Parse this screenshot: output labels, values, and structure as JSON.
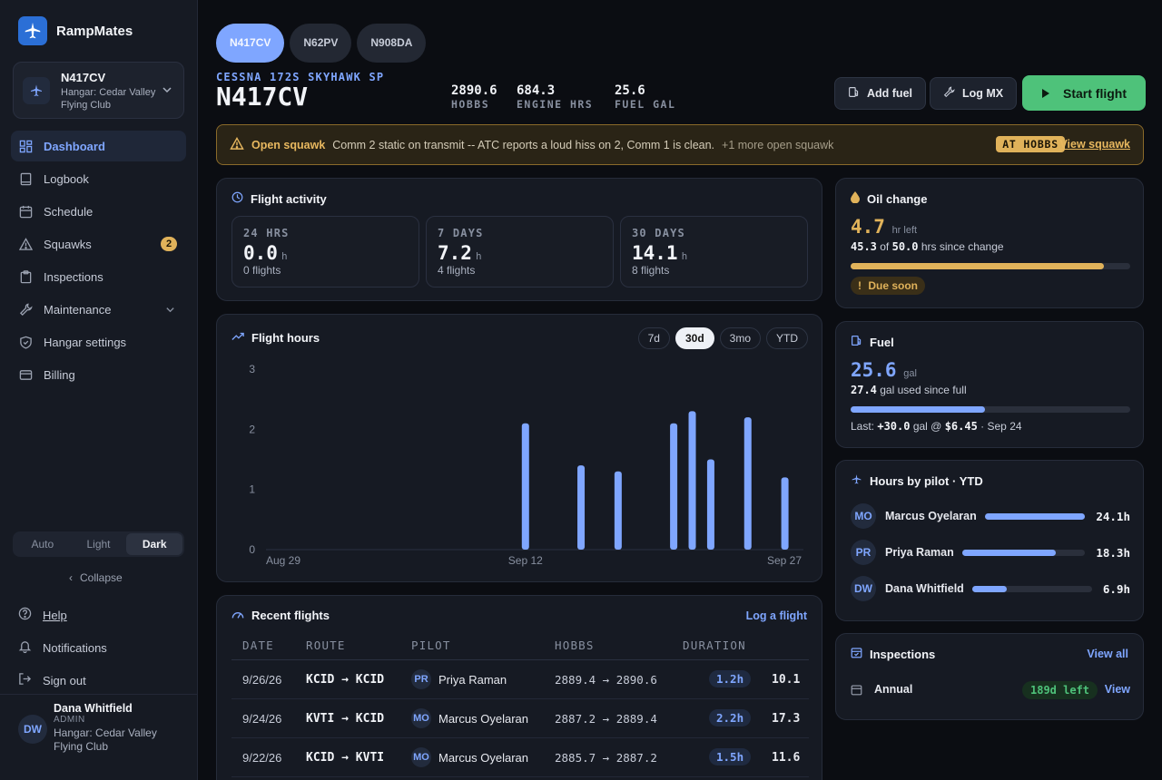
{
  "app": {
    "name": "RampMates"
  },
  "hangar_card": {
    "tail": "N417CV",
    "hangar": "Hangar: Cedar Valley Flying Club"
  },
  "nav": [
    {
      "label": "Dashboard",
      "icon": "dashboard-icon",
      "active": true
    },
    {
      "label": "Logbook",
      "icon": "book-icon"
    },
    {
      "label": "Schedule",
      "icon": "calendar-icon"
    },
    {
      "label": "Squawks",
      "icon": "warning-icon",
      "badge": "2"
    },
    {
      "label": "Inspections",
      "icon": "clipboard-icon"
    },
    {
      "label": "Maintenance",
      "icon": "wrench-icon",
      "expandable": true
    },
    {
      "label": "Hangar settings",
      "icon": "shield-icon"
    },
    {
      "label": "Billing",
      "icon": "card-icon"
    }
  ],
  "theme": {
    "options": [
      "Auto",
      "Light",
      "Dark"
    ],
    "selected": "Dark"
  },
  "collapse_label": "Collapse",
  "footer_links": {
    "help": "Help",
    "notifications": "Notifications",
    "sign_out": "Sign out"
  },
  "user": {
    "initials": "DW",
    "name": "Dana Whitfield",
    "role": "ADMIN",
    "hangar": "Hangar: Cedar Valley Flying Club"
  },
  "aircraft_tabs": [
    "N417CV",
    "N62PV",
    "N908DA"
  ],
  "aircraft": {
    "model": "CESSNA 172S SKYHAWK SP",
    "tail": "N417CV",
    "stats": [
      {
        "value": "2890.6",
        "label": "HOBBS"
      },
      {
        "value": "684.3",
        "label": "ENGINE HRS"
      },
      {
        "value": "25.6",
        "label": "FUEL GAL"
      }
    ]
  },
  "actions": {
    "add_fuel": "Add fuel",
    "log_mx": "Log MX",
    "start_flight": "Start flight"
  },
  "squawk_banner": {
    "title": "Open squawk",
    "description": "Comm 2 static on transmit -- ATC reports a loud hiss on 2, Comm 1 is clean.",
    "more": "+1 more open squawk",
    "tag": "AT HOBBS",
    "link": "View squawk"
  },
  "flight_activity": {
    "title": "Flight activity",
    "periods": [
      {
        "label": "24 HRS",
        "value": "0.0",
        "unit": "h",
        "count": "0 flights"
      },
      {
        "label": "7 DAYS",
        "value": "7.2",
        "unit": "h",
        "count": "4 flights"
      },
      {
        "label": "30 DAYS",
        "value": "14.1",
        "unit": "h",
        "count": "8 flights"
      }
    ]
  },
  "flight_hours": {
    "title": "Flight hours",
    "ranges": [
      "7d",
      "30d",
      "3mo",
      "YTD"
    ],
    "selected_range": "30d"
  },
  "chart_data": {
    "type": "bar",
    "title": "",
    "xlabel": "",
    "ylabel": "",
    "x_ticks": [
      "Aug 29",
      "Sep 12",
      "Sep 27"
    ],
    "y_ticks": [
      "0",
      "1",
      "2",
      "3"
    ],
    "ylim": [
      0,
      3
    ],
    "xlim": [
      "2026-08-29",
      "2026-09-27"
    ],
    "grid": false,
    "color": "#7fa6ff",
    "dates": [
      "2026-09-12",
      "2026-09-15",
      "2026-09-17",
      "2026-09-20",
      "2026-09-21",
      "2026-09-22",
      "2026-09-24",
      "2026-09-26"
    ],
    "values": [
      2.1,
      1.4,
      1.3,
      2.1,
      2.3,
      1.5,
      2.2,
      1.2
    ]
  },
  "recent_flights": {
    "title": "Recent flights",
    "link": "Log a flight",
    "columns": [
      "DATE",
      "ROUTE",
      "PILOT",
      "HOBBS",
      "DURATION"
    ],
    "rows": [
      {
        "date": "9/26/26",
        "route": "KCID → KCID",
        "pilot_initials": "PR",
        "pilot": "Priya Raman",
        "hobbs": "2889.4 → 2890.6",
        "duration": "1.2h",
        "extra": "10.1"
      },
      {
        "date": "9/24/26",
        "route": "KVTI → KCID",
        "pilot_initials": "MO",
        "pilot": "Marcus Oyelaran",
        "hobbs": "2887.2 → 2889.4",
        "duration": "2.2h",
        "extra": "17.3"
      },
      {
        "date": "9/22/26",
        "route": "KCID → KVTI",
        "pilot_initials": "MO",
        "pilot": "Marcus Oyelaran",
        "hobbs": "2885.7 → 2887.2",
        "duration": "1.5h",
        "extra": "11.6"
      }
    ]
  },
  "oil_change": {
    "title": "Oil change",
    "value": "4.7",
    "unit": "hr left",
    "used": "45.3",
    "of_label": "of",
    "total": "50.0",
    "suffix": "hrs since change",
    "progress": 0.906,
    "status": "Due soon"
  },
  "fuel": {
    "title": "Fuel",
    "value": "25.6",
    "unit": "gal",
    "used": "27.4",
    "used_suffix": "gal used since full",
    "progress": 0.48,
    "last_prefix": "Last:",
    "last_amount": "+30.0",
    "gal_label": "gal @",
    "last_price": "$6.45",
    "last_date": "· Sep 24"
  },
  "hours_by_pilot": {
    "title": "Hours by pilot · YTD",
    "pilots": [
      {
        "initials": "MO",
        "name": "Marcus Oyelaran",
        "hours": "24.1h",
        "fraction": 1.0
      },
      {
        "initials": "PR",
        "name": "Priya Raman",
        "hours": "18.3h",
        "fraction": 0.76
      },
      {
        "initials": "DW",
        "name": "Dana Whitfield",
        "hours": "6.9h",
        "fraction": 0.29
      }
    ]
  },
  "inspections": {
    "title": "Inspections",
    "link": "View all",
    "items": [
      {
        "name": "Annual",
        "status": "189d left",
        "action": "View"
      }
    ]
  }
}
